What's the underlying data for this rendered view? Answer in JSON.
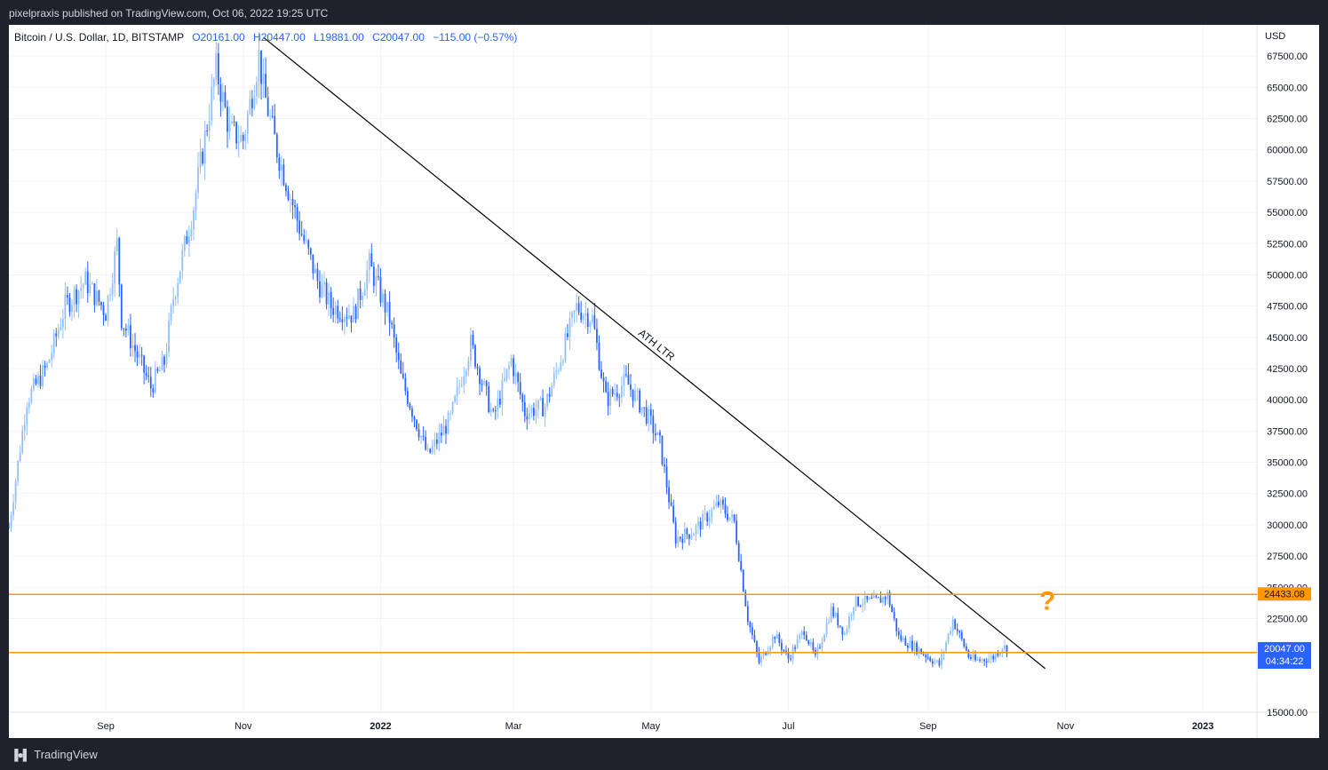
{
  "header": {
    "published": "pixelpraxis published on TradingView.com, Oct 06, 2022 19:25 UTC"
  },
  "legend": {
    "symbol": "Bitcoin / U.S. Dollar, 1D, BITSTAMP",
    "open": "O20161.00",
    "high": "H20447.00",
    "low": "L19881.00",
    "close": "C20047.00",
    "change": "−115.00 (−0.57%)"
  },
  "footer": {
    "brand_icon": "tradingview-logo-icon",
    "brand_name": "TradingView"
  },
  "colors": {
    "candle_up": "#90bff9",
    "candle_down": "#2962ff",
    "trendline": "#000000",
    "horizontal_levels": "#ff9800",
    "price_badge": "#2962ff",
    "level_badge": "#ff9800",
    "question_mark": "#ff9800"
  },
  "chart_data": {
    "type": "candlestick",
    "y_axis_unit": "USD",
    "ylim": [
      15000,
      70000
    ],
    "y_ticks": [
      15000,
      22500,
      25000,
      27500,
      30000,
      32500,
      35000,
      37500,
      40000,
      42500,
      45000,
      47500,
      50000,
      52500,
      55000,
      57500,
      60000,
      62500,
      65000,
      67500
    ],
    "y_tick_labels": [
      "15000.00",
      "22500.00",
      "25000.00",
      "27500.00",
      "30000.00",
      "32500.00",
      "35000.00",
      "37500.00",
      "40000.00",
      "42500.00",
      "45000.00",
      "47500.00",
      "50000.00",
      "52500.00",
      "55000.00",
      "57500.00",
      "60000.00",
      "62500.00",
      "65000.00",
      "67500.00"
    ],
    "x_range": [
      "2021-07-20",
      "2023-01-25"
    ],
    "x_ticks": [
      {
        "date": "2021-09-01",
        "label": "Sep",
        "bold": false
      },
      {
        "date": "2021-11-01",
        "label": "Nov",
        "bold": false
      },
      {
        "date": "2022-01-01",
        "label": "2022",
        "bold": true
      },
      {
        "date": "2022-03-01",
        "label": "Mar",
        "bold": false
      },
      {
        "date": "2022-05-01",
        "label": "May",
        "bold": false
      },
      {
        "date": "2022-07-01",
        "label": "Jul",
        "bold": false
      },
      {
        "date": "2022-09-01",
        "label": "Sep",
        "bold": false
      },
      {
        "date": "2022-11-01",
        "label": "Nov",
        "bold": false
      },
      {
        "date": "2023-01-01",
        "label": "2023",
        "bold": true
      }
    ],
    "grid": true,
    "price_path": [
      [
        "2021-07-20",
        29800
      ],
      [
        "2021-07-28",
        40000
      ],
      [
        "2021-08-06",
        42700
      ],
      [
        "2021-08-14",
        47500
      ],
      [
        "2021-08-23",
        49500
      ],
      [
        "2021-09-01",
        47000
      ],
      [
        "2021-09-06",
        52500
      ],
      [
        "2021-09-08",
        46500
      ],
      [
        "2021-09-21",
        41000
      ],
      [
        "2021-09-27",
        43000
      ],
      [
        "2021-10-01",
        48200
      ],
      [
        "2021-10-10",
        55500
      ],
      [
        "2021-10-20",
        66500
      ],
      [
        "2021-10-26",
        61500
      ],
      [
        "2021-11-01",
        60800
      ],
      [
        "2021-11-08",
        67500
      ],
      [
        "2021-11-10",
        64800
      ],
      [
        "2021-11-16",
        60000
      ],
      [
        "2021-11-26",
        53800
      ],
      [
        "2021-12-04",
        49500
      ],
      [
        "2021-12-10",
        47500
      ],
      [
        "2021-12-20",
        46800
      ],
      [
        "2021-12-27",
        50800
      ],
      [
        "2022-01-05",
        46500
      ],
      [
        "2022-01-10",
        41800
      ],
      [
        "2022-01-22",
        35500
      ],
      [
        "2022-02-01",
        38500
      ],
      [
        "2022-02-10",
        44500
      ],
      [
        "2022-02-20",
        38500
      ],
      [
        "2022-02-28",
        43200
      ],
      [
        "2022-03-06",
        39000
      ],
      [
        "2022-03-15",
        39500
      ],
      [
        "2022-03-24",
        44500
      ],
      [
        "2022-03-29",
        47400
      ],
      [
        "2022-04-05",
        46500
      ],
      [
        "2022-04-11",
        40000
      ],
      [
        "2022-04-20",
        41500
      ],
      [
        "2022-04-30",
        38500
      ],
      [
        "2022-05-05",
        36500
      ],
      [
        "2022-05-10",
        31000
      ],
      [
        "2022-05-12",
        28900
      ],
      [
        "2022-05-20",
        29500
      ],
      [
        "2022-05-31",
        31700
      ],
      [
        "2022-06-07",
        30200
      ],
      [
        "2022-06-13",
        22500
      ],
      [
        "2022-06-18",
        19000
      ],
      [
        "2022-06-25",
        21200
      ],
      [
        "2022-07-01",
        19300
      ],
      [
        "2022-07-08",
        21600
      ],
      [
        "2022-07-13",
        19300
      ],
      [
        "2022-07-20",
        23200
      ],
      [
        "2022-07-26",
        21300
      ],
      [
        "2022-07-30",
        23800
      ],
      [
        "2022-08-10",
        23900
      ],
      [
        "2022-08-14",
        24400
      ],
      [
        "2022-08-19",
        21000
      ],
      [
        "2022-08-26",
        20200
      ],
      [
        "2022-09-06",
        18800
      ],
      [
        "2022-09-12",
        22400
      ],
      [
        "2022-09-19",
        19500
      ],
      [
        "2022-09-22",
        19100
      ],
      [
        "2022-09-30",
        19400
      ],
      [
        "2022-10-04",
        20300
      ],
      [
        "2022-10-06",
        20047
      ]
    ],
    "annotations": [
      {
        "id": "ath-trendline",
        "type": "trendline",
        "label": "ATH LTR",
        "from": [
          "2021-11-10",
          69000
        ],
        "to": [
          "2022-10-23",
          18500
        ]
      },
      {
        "id": "resistance",
        "type": "horizontal",
        "value": 24433.08,
        "label": "24433.08"
      },
      {
        "id": "support",
        "type": "horizontal",
        "value": 19783.04,
        "label": "19783.04"
      },
      {
        "id": "outlook",
        "type": "text",
        "label": "?",
        "at": [
          "2022-10-24",
          23200
        ]
      }
    ],
    "last_price": {
      "value": 20047.0,
      "label": "20047.00",
      "countdown": "04:34:22"
    }
  }
}
